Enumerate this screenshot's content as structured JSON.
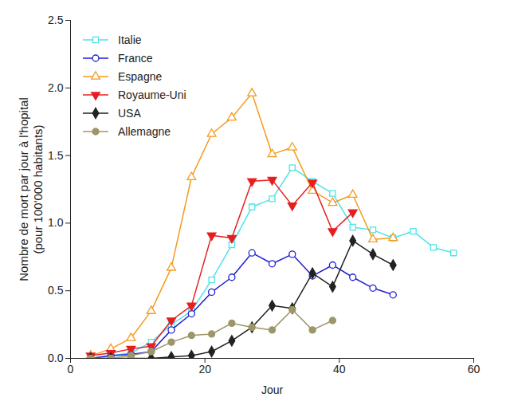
{
  "chart_data": {
    "type": "line",
    "x_label": "Jour",
    "y_label": "Nombre de mort par jour à l'hopital\n(pour 100'000 habitants)",
    "xlim": [
      0,
      60
    ],
    "xticks": [
      0,
      20,
      40,
      60
    ],
    "ylim": [
      0,
      2.5
    ],
    "yticks": [
      {
        "value": 0,
        "label": "0.0"
      },
      0.5,
      {
        "value": 1,
        "label": "1.0"
      },
      1.5,
      {
        "value": 2,
        "label": "2.0"
      },
      2.5
    ],
    "grid": false,
    "legend": "upper left",
    "x": [
      3,
      6,
      9,
      12,
      15,
      18,
      21,
      24,
      27,
      30,
      33,
      36,
      39,
      42,
      45,
      48,
      51,
      54,
      57
    ],
    "series": [
      {
        "name": "Italie",
        "color": "#4fe3e8",
        "marker": "square-open",
        "values": [
          0.0,
          0.02,
          0.04,
          0.12,
          0.25,
          0.35,
          0.58,
          0.84,
          1.12,
          1.18,
          1.41,
          1.31,
          1.22,
          0.97,
          0.95,
          0.89,
          0.94,
          0.82,
          0.78
        ]
      },
      {
        "name": "France",
        "color": "#2020d0",
        "marker": "circle-open",
        "values": [
          0.0,
          0.02,
          0.03,
          0.05,
          0.21,
          0.33,
          0.49,
          0.6,
          0.78,
          0.7,
          0.77,
          0.61,
          0.69,
          0.6,
          0.52,
          0.47,
          null,
          null,
          null
        ]
      },
      {
        "name": "Espagne",
        "color": "#f59a1e",
        "marker": "triangle-open",
        "values": [
          0.02,
          0.07,
          0.15,
          0.35,
          0.67,
          1.34,
          1.66,
          1.78,
          1.96,
          1.51,
          1.56,
          1.24,
          1.15,
          1.21,
          0.88,
          0.89,
          null,
          null,
          null
        ]
      },
      {
        "name": "Royaume-Uni",
        "color": "#e61e1e",
        "marker": "triangle-down",
        "values": [
          0.02,
          0.04,
          0.07,
          0.09,
          0.28,
          0.39,
          0.91,
          0.89,
          1.31,
          1.32,
          1.13,
          1.3,
          0.94,
          1.08,
          null,
          null,
          null,
          null,
          null
        ]
      },
      {
        "name": "USA",
        "color": "#222222",
        "marker": "diamond",
        "values": [
          0.0,
          0.0,
          0.0,
          0.0,
          0.01,
          0.02,
          0.05,
          0.13,
          0.23,
          0.39,
          0.37,
          0.63,
          0.53,
          0.87,
          0.77,
          0.69,
          null,
          null,
          null
        ]
      },
      {
        "name": "Allemagne",
        "color": "#9c9668",
        "marker": "circle",
        "values": [
          0.0,
          0.0,
          0.02,
          0.05,
          0.12,
          0.17,
          0.18,
          0.26,
          0.23,
          0.21,
          0.36,
          0.21,
          0.28,
          null,
          null,
          null,
          null,
          null,
          null
        ]
      }
    ]
  }
}
